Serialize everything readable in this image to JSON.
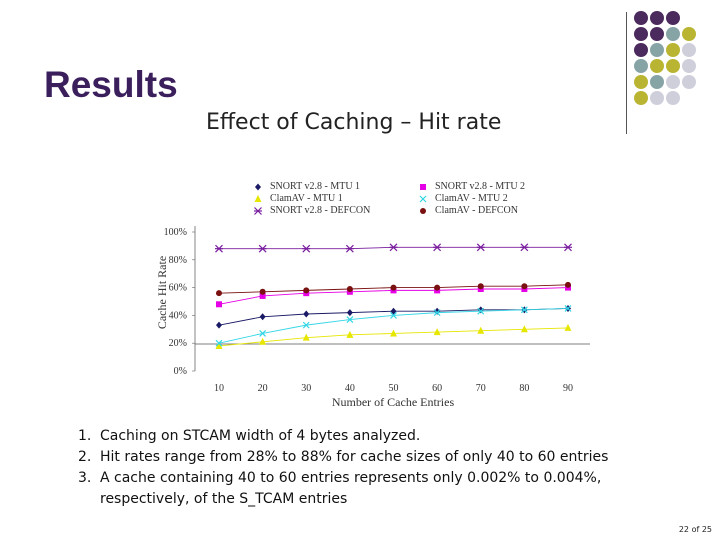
{
  "slide": {
    "title": "Results",
    "bullets": [
      {
        "num": "1.",
        "text": "Caching on STCAM width of 4 bytes analyzed."
      },
      {
        "num": "2.",
        "text": "Hit rates range from 28% to 88% for cache sizes of only 40 to 60 entries"
      },
      {
        "num": "3.",
        "text": "A cache containing 40 to 60 entries represents only 0.002% to 0.004%, respectively, of the S_TCAM entries"
      }
    ],
    "page_number": "22 of 25",
    "accent_colors": [
      "#4b2a5e",
      "#86a3a5",
      "#b9b532",
      "#cfcfdc"
    ]
  },
  "chart_data": {
    "type": "line",
    "title": "Effect of Caching – Hit rate",
    "xlabel": "Number of Cache Entries",
    "ylabel": "Cache Hit Rate",
    "x": [
      10,
      20,
      30,
      40,
      50,
      60,
      70,
      80,
      90
    ],
    "ylim": [
      0,
      100
    ],
    "yticks": [
      "0%",
      "20%",
      "40%",
      "60%",
      "80%",
      "100%"
    ],
    "series": [
      {
        "name": "SNORT v2.8 - MTU 1",
        "color": "#1a1a66",
        "marker": "diamond",
        "values": [
          33,
          39,
          41,
          42,
          43,
          43,
          44,
          44,
          45
        ]
      },
      {
        "name": "SNORT v2.8 - MTU 2",
        "color": "#e600e6",
        "marker": "square",
        "values": [
          48,
          54,
          56,
          57,
          58,
          58,
          59,
          59,
          60
        ]
      },
      {
        "name": "ClamAV - MTU 1",
        "color": "#e6e600",
        "marker": "triangle",
        "values": [
          18,
          21,
          24,
          26,
          27,
          28,
          29,
          30,
          31
        ]
      },
      {
        "name": "ClamAV - MTU 2",
        "color": "#33d6e6",
        "marker": "x",
        "values": [
          20,
          27,
          33,
          37,
          40,
          42,
          43,
          44,
          45
        ]
      },
      {
        "name": "SNORT v2.8 - DEFCON",
        "color": "#7a1f9e",
        "marker": "star",
        "values": [
          88,
          88,
          88,
          88,
          89,
          89,
          89,
          89,
          89
        ]
      },
      {
        "name": "ClamAV - DEFCON",
        "color": "#7a1010",
        "marker": "circle",
        "values": [
          56,
          57,
          58,
          59,
          60,
          60,
          61,
          61,
          62
        ]
      }
    ]
  }
}
